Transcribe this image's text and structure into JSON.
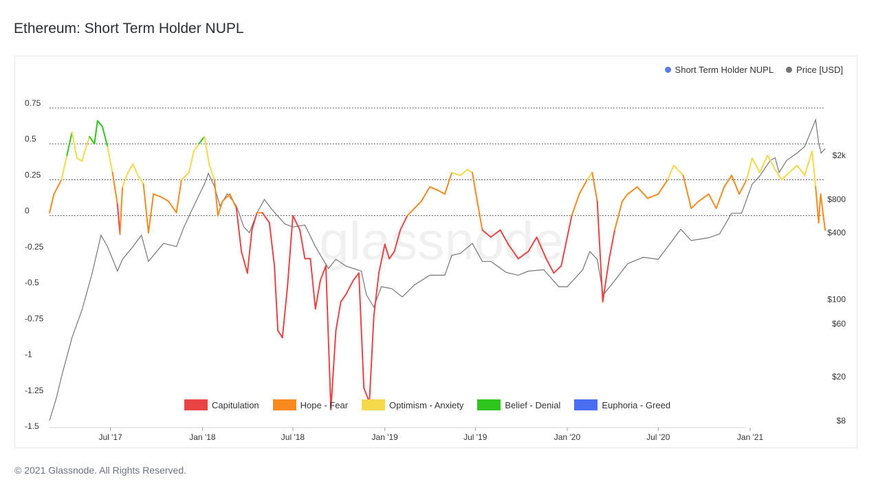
{
  "page": {
    "title": "Ethereum: Short Term Holder NUPL",
    "footer": "© 2021 Glassnode. All Rights Reserved.",
    "watermark": "glassnode"
  },
  "chart_data": {
    "type": "line",
    "title": "Ethereum: Short Term Holder NUPL",
    "legend_top": [
      {
        "name": "Short Term Holder NUPL",
        "color": "#5b7be8"
      },
      {
        "name": "Price [USD]",
        "color": "#757575"
      }
    ],
    "legend_bottom": [
      {
        "name": "Capitulation",
        "color": "#e94444"
      },
      {
        "name": "Hope - Fear",
        "color": "#f7891e"
      },
      {
        "name": "Optimism - Anxiety",
        "color": "#f5d94a"
      },
      {
        "name": "Belief - Denial",
        "color": "#2fc51f"
      },
      {
        "name": "Euphoria - Greed",
        "color": "#4a6ef2"
      }
    ],
    "x_range": [
      "2017-03-01",
      "2021-05-31"
    ],
    "x_ticks": [
      {
        "label": "Jul '17",
        "date": "2017-07-01"
      },
      {
        "label": "Jan '18",
        "date": "2018-01-01"
      },
      {
        "label": "Jul '18",
        "date": "2018-07-01"
      },
      {
        "label": "Jan '19",
        "date": "2019-01-01"
      },
      {
        "label": "Jul '19",
        "date": "2019-07-01"
      },
      {
        "label": "Jan '20",
        "date": "2020-01-01"
      },
      {
        "label": "Jul '20",
        "date": "2020-07-01"
      },
      {
        "label": "Jan '21",
        "date": "2021-01-01"
      }
    ],
    "y_left": {
      "ylim": [
        -1.5,
        0.75
      ],
      "ticks": [
        {
          "value": 0.75,
          "label": "0.75"
        },
        {
          "value": 0.5,
          "label": "0.5"
        },
        {
          "value": 0.25,
          "label": "0.25"
        },
        {
          "value": 0,
          "label": "0"
        },
        {
          "value": -0.25,
          "label": "-0.25"
        },
        {
          "value": -0.5,
          "label": "-0.5"
        },
        {
          "value": -0.75,
          "label": "-0.75"
        },
        {
          "value": -1,
          "label": "-1"
        },
        {
          "value": -1.25,
          "label": "-1.25"
        },
        {
          "value": -1.5,
          "label": "-1.5"
        }
      ],
      "dotted_gridlines": [
        0.75,
        0.5,
        0.25,
        0
      ]
    },
    "y_right": {
      "scale": "log",
      "ylim": [
        8,
        5000
      ],
      "ticks": [
        {
          "value": 2000,
          "label": "$2k"
        },
        {
          "value": 800,
          "label": "$800"
        },
        {
          "value": 400,
          "label": "$400"
        },
        {
          "value": 100,
          "label": "$100"
        },
        {
          "value": 60,
          "label": "$60"
        },
        {
          "value": 20,
          "label": "$20"
        },
        {
          "value": 8,
          "label": "$8"
        }
      ]
    },
    "zones": [
      {
        "name": "Capitulation",
        "below": 0,
        "color": "#e94444"
      },
      {
        "name": "Hope - Fear",
        "from": 0,
        "to": 0.25,
        "color": "#f7891e"
      },
      {
        "name": "Optimism - Anxiety",
        "from": 0.25,
        "to": 0.5,
        "color": "#f5d94a"
      },
      {
        "name": "Belief - Denial",
        "from": 0.5,
        "to": 0.75,
        "color": "#2fc51f"
      },
      {
        "name": "Euphoria - Greed",
        "above": 0.75,
        "color": "#4a6ef2"
      }
    ],
    "series": [
      {
        "name": "Short Term Holder NUPL",
        "axis": "left",
        "points": [
          [
            "2017-03-01",
            0.02
          ],
          [
            "2017-03-10",
            0.15
          ],
          [
            "2017-03-25",
            0.25
          ],
          [
            "2017-04-05",
            0.42
          ],
          [
            "2017-04-15",
            0.58
          ],
          [
            "2017-04-25",
            0.4
          ],
          [
            "2017-05-05",
            0.38
          ],
          [
            "2017-05-20",
            0.55
          ],
          [
            "2017-05-30",
            0.5
          ],
          [
            "2017-06-05",
            0.66
          ],
          [
            "2017-06-15",
            0.62
          ],
          [
            "2017-06-25",
            0.48
          ],
          [
            "2017-07-05",
            0.3
          ],
          [
            "2017-07-15",
            0.08
          ],
          [
            "2017-07-20",
            -0.13
          ],
          [
            "2017-07-25",
            0.2
          ],
          [
            "2017-08-05",
            0.3
          ],
          [
            "2017-08-15",
            0.36
          ],
          [
            "2017-08-25",
            0.28
          ],
          [
            "2017-09-05",
            0.22
          ],
          [
            "2017-09-15",
            -0.12
          ],
          [
            "2017-09-25",
            0.15
          ],
          [
            "2017-10-10",
            0.13
          ],
          [
            "2017-10-25",
            0.1
          ],
          [
            "2017-11-10",
            0.02
          ],
          [
            "2017-11-20",
            0.25
          ],
          [
            "2017-12-05",
            0.3
          ],
          [
            "2017-12-15",
            0.45
          ],
          [
            "2017-12-25",
            0.5
          ],
          [
            "2018-01-05",
            0.55
          ],
          [
            "2018-01-15",
            0.35
          ],
          [
            "2018-01-25",
            0.25
          ],
          [
            "2018-02-01",
            0.0
          ],
          [
            "2018-02-10",
            0.1
          ],
          [
            "2018-02-25",
            0.15
          ],
          [
            "2018-03-10",
            0.05
          ],
          [
            "2018-03-20",
            -0.25
          ],
          [
            "2018-04-01",
            -0.4
          ],
          [
            "2018-04-10",
            -0.1
          ],
          [
            "2018-04-20",
            0.02
          ],
          [
            "2018-05-01",
            0.02
          ],
          [
            "2018-05-15",
            -0.05
          ],
          [
            "2018-05-25",
            -0.35
          ],
          [
            "2018-06-01",
            -0.8
          ],
          [
            "2018-06-10",
            -0.85
          ],
          [
            "2018-06-20",
            -0.5
          ],
          [
            "2018-07-01",
            0.0
          ],
          [
            "2018-07-15",
            -0.1
          ],
          [
            "2018-07-25",
            -0.3
          ],
          [
            "2018-08-05",
            -0.3
          ],
          [
            "2018-08-15",
            -0.65
          ],
          [
            "2018-08-25",
            -0.45
          ],
          [
            "2018-09-05",
            -0.35
          ],
          [
            "2018-09-15",
            -1.35
          ],
          [
            "2018-09-25",
            -0.8
          ],
          [
            "2018-10-05",
            -0.6
          ],
          [
            "2018-10-15",
            -0.55
          ],
          [
            "2018-10-30",
            -0.45
          ],
          [
            "2018-11-10",
            -0.4
          ],
          [
            "2018-11-20",
            -1.2
          ],
          [
            "2018-12-01",
            -1.3
          ],
          [
            "2018-12-10",
            -0.7
          ],
          [
            "2018-12-20",
            -0.4
          ],
          [
            "2019-01-01",
            -0.2
          ],
          [
            "2019-01-10",
            -0.3
          ],
          [
            "2019-01-20",
            -0.25
          ],
          [
            "2019-02-01",
            -0.1
          ],
          [
            "2019-02-15",
            0.0
          ],
          [
            "2019-03-01",
            0.05
          ],
          [
            "2019-03-15",
            0.1
          ],
          [
            "2019-04-01",
            0.2
          ],
          [
            "2019-04-15",
            0.18
          ],
          [
            "2019-05-01",
            0.15
          ],
          [
            "2019-05-15",
            0.3
          ],
          [
            "2019-06-01",
            0.28
          ],
          [
            "2019-06-15",
            0.32
          ],
          [
            "2019-06-25",
            0.3
          ],
          [
            "2019-07-05",
            0.1
          ],
          [
            "2019-07-15",
            -0.1
          ],
          [
            "2019-08-01",
            -0.15
          ],
          [
            "2019-08-20",
            -0.1
          ],
          [
            "2019-09-05",
            -0.2
          ],
          [
            "2019-09-25",
            -0.3
          ],
          [
            "2019-10-15",
            -0.25
          ],
          [
            "2019-11-01",
            -0.15
          ],
          [
            "2019-11-20",
            -0.3
          ],
          [
            "2019-12-05",
            -0.4
          ],
          [
            "2019-12-20",
            -0.35
          ],
          [
            "2020-01-10",
            0.0
          ],
          [
            "2020-01-25",
            0.15
          ],
          [
            "2020-02-10",
            0.25
          ],
          [
            "2020-02-20",
            0.3
          ],
          [
            "2020-03-01",
            0.1
          ],
          [
            "2020-03-12",
            -0.6
          ],
          [
            "2020-03-25",
            -0.3
          ],
          [
            "2020-04-05",
            -0.1
          ],
          [
            "2020-04-20",
            0.1
          ],
          [
            "2020-05-01",
            0.15
          ],
          [
            "2020-05-20",
            0.2
          ],
          [
            "2020-06-10",
            0.12
          ],
          [
            "2020-07-01",
            0.15
          ],
          [
            "2020-07-20",
            0.25
          ],
          [
            "2020-08-01",
            0.35
          ],
          [
            "2020-08-20",
            0.28
          ],
          [
            "2020-09-05",
            0.05
          ],
          [
            "2020-09-20",
            0.1
          ],
          [
            "2020-10-10",
            0.15
          ],
          [
            "2020-10-25",
            0.05
          ],
          [
            "2020-11-10",
            0.2
          ],
          [
            "2020-11-25",
            0.28
          ],
          [
            "2020-12-10",
            0.15
          ],
          [
            "2020-12-25",
            0.25
          ],
          [
            "2021-01-05",
            0.4
          ],
          [
            "2021-01-20",
            0.3
          ],
          [
            "2021-02-05",
            0.42
          ],
          [
            "2021-02-20",
            0.32
          ],
          [
            "2021-03-05",
            0.25
          ],
          [
            "2021-03-20",
            0.3
          ],
          [
            "2021-04-05",
            0.35
          ],
          [
            "2021-04-20",
            0.28
          ],
          [
            "2021-05-05",
            0.45
          ],
          [
            "2021-05-12",
            0.2
          ],
          [
            "2021-05-18",
            -0.05
          ],
          [
            "2021-05-22",
            0.15
          ],
          [
            "2021-05-31",
            -0.1
          ]
        ]
      },
      {
        "name": "Price [USD]",
        "axis": "right",
        "color": "#757575",
        "points": [
          [
            "2017-03-01",
            8
          ],
          [
            "2017-03-15",
            13
          ],
          [
            "2017-03-25",
            20
          ],
          [
            "2017-04-15",
            45
          ],
          [
            "2017-05-05",
            80
          ],
          [
            "2017-05-25",
            170
          ],
          [
            "2017-06-12",
            380
          ],
          [
            "2017-06-25",
            300
          ],
          [
            "2017-07-15",
            180
          ],
          [
            "2017-07-25",
            230
          ],
          [
            "2017-08-15",
            300
          ],
          [
            "2017-09-01",
            380
          ],
          [
            "2017-09-15",
            220
          ],
          [
            "2017-10-15",
            320
          ],
          [
            "2017-11-10",
            300
          ],
          [
            "2017-11-25",
            450
          ],
          [
            "2017-12-15",
            700
          ],
          [
            "2018-01-05",
            1100
          ],
          [
            "2018-01-13",
            1380
          ],
          [
            "2018-01-25",
            1050
          ],
          [
            "2018-02-05",
            700
          ],
          [
            "2018-02-20",
            900
          ],
          [
            "2018-03-10",
            700
          ],
          [
            "2018-03-25",
            450
          ],
          [
            "2018-04-05",
            400
          ],
          [
            "2018-04-20",
            600
          ],
          [
            "2018-05-05",
            800
          ],
          [
            "2018-05-20",
            650
          ],
          [
            "2018-06-15",
            480
          ],
          [
            "2018-07-01",
            450
          ],
          [
            "2018-07-25",
            470
          ],
          [
            "2018-08-15",
            300
          ],
          [
            "2018-09-10",
            190
          ],
          [
            "2018-09-25",
            230
          ],
          [
            "2018-10-15",
            200
          ],
          [
            "2018-11-15",
            180
          ],
          [
            "2018-11-25",
            110
          ],
          [
            "2018-12-10",
            85
          ],
          [
            "2018-12-25",
            130
          ],
          [
            "2019-01-15",
            125
          ],
          [
            "2019-02-05",
            105
          ],
          [
            "2019-03-01",
            135
          ],
          [
            "2019-04-01",
            165
          ],
          [
            "2019-05-01",
            165
          ],
          [
            "2019-05-15",
            250
          ],
          [
            "2019-06-01",
            260
          ],
          [
            "2019-06-25",
            320
          ],
          [
            "2019-07-15",
            220
          ],
          [
            "2019-08-01",
            220
          ],
          [
            "2019-09-01",
            175
          ],
          [
            "2019-09-25",
            165
          ],
          [
            "2019-10-15",
            180
          ],
          [
            "2019-11-15",
            185
          ],
          [
            "2019-12-15",
            130
          ],
          [
            "2020-01-01",
            130
          ],
          [
            "2020-02-01",
            185
          ],
          [
            "2020-02-15",
            270
          ],
          [
            "2020-03-01",
            230
          ],
          [
            "2020-03-13",
            110
          ],
          [
            "2020-04-01",
            140
          ],
          [
            "2020-05-01",
            210
          ],
          [
            "2020-06-01",
            240
          ],
          [
            "2020-07-01",
            230
          ],
          [
            "2020-07-25",
            320
          ],
          [
            "2020-08-15",
            430
          ],
          [
            "2020-09-05",
            340
          ],
          [
            "2020-10-10",
            360
          ],
          [
            "2020-11-01",
            390
          ],
          [
            "2020-11-25",
            600
          ],
          [
            "2020-12-15",
            600
          ],
          [
            "2021-01-05",
            1100
          ],
          [
            "2021-01-20",
            1300
          ],
          [
            "2021-02-10",
            1800
          ],
          [
            "2021-02-20",
            1900
          ],
          [
            "2021-02-28",
            1400
          ],
          [
            "2021-03-15",
            1800
          ],
          [
            "2021-04-05",
            2100
          ],
          [
            "2021-04-20",
            2400
          ],
          [
            "2021-05-05",
            3500
          ],
          [
            "2021-05-12",
            4200
          ],
          [
            "2021-05-18",
            2600
          ],
          [
            "2021-05-23",
            2100
          ],
          [
            "2021-05-31",
            2300
          ]
        ]
      }
    ]
  }
}
